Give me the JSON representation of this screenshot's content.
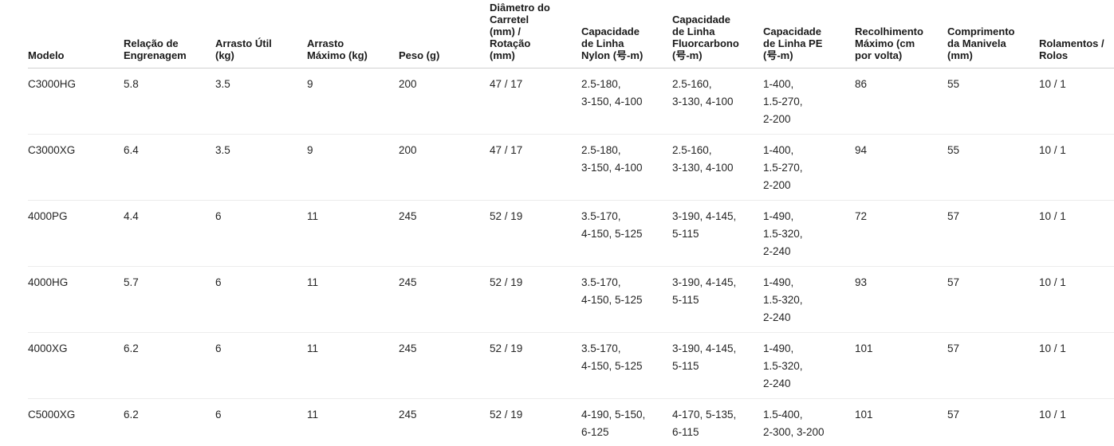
{
  "table": {
    "columns": [
      {
        "label": "Modelo"
      },
      {
        "label": "Relação de\nEngrenagem"
      },
      {
        "label": "Arrasto Útil\n(kg)"
      },
      {
        "label": "Arrasto\nMáximo (kg)"
      },
      {
        "label": "Peso (g)"
      },
      {
        "label": "Diâmetro do\nCarretel\n(mm) /\nRotação\n(mm)"
      },
      {
        "label": "Capacidade\nde Linha\nNylon (号-m)"
      },
      {
        "label": "Capacidade\nde Linha\nFluorcarbono\n(号-m)"
      },
      {
        "label": "Capacidade\nde Linha PE\n(号-m)"
      },
      {
        "label": "Recolhimento\nMáximo (cm\npor volta)"
      },
      {
        "label": "Comprimento\nda Manivela\n(mm)"
      },
      {
        "label": "Rolamentos /\nRolos"
      }
    ],
    "rows": [
      [
        "C3000HG",
        "5.8",
        "3.5",
        "9",
        "200",
        "47 / 17",
        "2.5-180,\n3-150, 4-100",
        "2.5-160,\n3-130, 4-100",
        "1-400,\n1.5-270,\n2-200",
        "86",
        "55",
        "10 / 1"
      ],
      [
        "C3000XG",
        "6.4",
        "3.5",
        "9",
        "200",
        "47 / 17",
        "2.5-180,\n3-150, 4-100",
        "2.5-160,\n3-130, 4-100",
        "1-400,\n1.5-270,\n2-200",
        "94",
        "55",
        "10 / 1"
      ],
      [
        "4000PG",
        "4.4",
        "6",
        "11",
        "245",
        "52 / 19",
        "3.5-170,\n4-150, 5-125",
        "3-190, 4-145,\n5-115",
        "1-490,\n1.5-320,\n2-240",
        "72",
        "57",
        "10 / 1"
      ],
      [
        "4000HG",
        "5.7",
        "6",
        "11",
        "245",
        "52 / 19",
        "3.5-170,\n4-150, 5-125",
        "3-190, 4-145,\n5-115",
        "1-490,\n1.5-320,\n2-240",
        "93",
        "57",
        "10 / 1"
      ],
      [
        "4000XG",
        "6.2",
        "6",
        "11",
        "245",
        "52 / 19",
        "3.5-170,\n4-150, 5-125",
        "3-190, 4-145,\n5-115",
        "1-490,\n1.5-320,\n2-240",
        "101",
        "57",
        "10 / 1"
      ],
      [
        "C5000XG",
        "6.2",
        "6",
        "11",
        "245",
        "52 / 19",
        "4-190, 5-150,\n6-125",
        "4-170, 5-135,\n6-115",
        "1.5-400,\n2-300, 3-200",
        "101",
        "57",
        "10 / 1"
      ]
    ]
  },
  "colors": {
    "background": "#ffffff",
    "header_text": "#1a1a1a",
    "body_text": "#252525",
    "header_border": "#d1d1d1",
    "row_border": "#ececec"
  }
}
